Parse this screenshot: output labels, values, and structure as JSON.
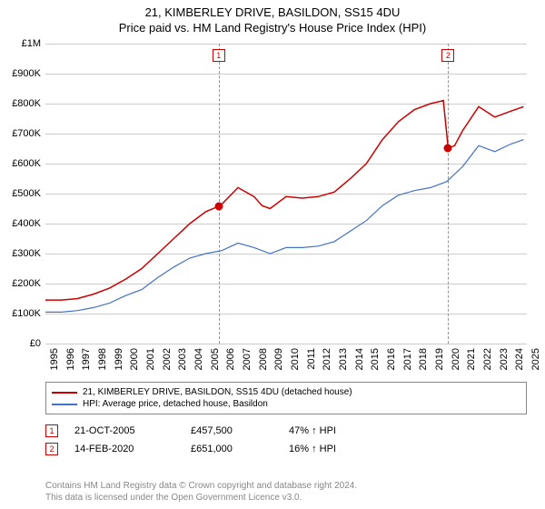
{
  "title": "21, KIMBERLEY DRIVE, BASILDON, SS15 4DU",
  "subtitle": "Price paid vs. HM Land Registry's House Price Index (HPI)",
  "chart": {
    "type": "line",
    "background_color": "#ffffff",
    "grid_color": "#cccccc",
    "marker_line_color": "#ff6666",
    "ylim": [
      0,
      1000000
    ],
    "ytick_step": 100000,
    "yticks": [
      "£0",
      "£100K",
      "£200K",
      "£300K",
      "£400K",
      "£500K",
      "£600K",
      "£700K",
      "£800K",
      "£900K",
      "£1M"
    ],
    "xmin": 1995,
    "xmax": 2025,
    "xticks": [
      1995,
      1996,
      1997,
      1998,
      1999,
      2000,
      2001,
      2002,
      2003,
      2004,
      2005,
      2006,
      2007,
      2008,
      2009,
      2010,
      2011,
      2012,
      2013,
      2014,
      2015,
      2016,
      2017,
      2018,
      2019,
      2020,
      2021,
      2022,
      2023,
      2024,
      2025
    ],
    "marker_years": [
      2005.8,
      2020.1
    ],
    "series": [
      {
        "name": "21, KIMBERLEY DRIVE, BASILDON, SS15 4DU (detached house)",
        "color": "#cc0000",
        "line_width": 1.5,
        "dot_color": "#cc0000",
        "points": [
          [
            1995,
            145000
          ],
          [
            1996,
            145000
          ],
          [
            1997,
            150000
          ],
          [
            1998,
            165000
          ],
          [
            1999,
            185000
          ],
          [
            2000,
            215000
          ],
          [
            2001,
            250000
          ],
          [
            2002,
            300000
          ],
          [
            2003,
            350000
          ],
          [
            2004,
            400000
          ],
          [
            2005,
            440000
          ],
          [
            2005.8,
            457500
          ],
          [
            2006,
            465000
          ],
          [
            2007,
            520000
          ],
          [
            2008,
            490000
          ],
          [
            2008.5,
            460000
          ],
          [
            2009,
            450000
          ],
          [
            2010,
            490000
          ],
          [
            2011,
            485000
          ],
          [
            2012,
            490000
          ],
          [
            2013,
            505000
          ],
          [
            2014,
            550000
          ],
          [
            2015,
            600000
          ],
          [
            2016,
            680000
          ],
          [
            2017,
            740000
          ],
          [
            2018,
            780000
          ],
          [
            2019,
            800000
          ],
          [
            2019.8,
            810000
          ],
          [
            2020.1,
            651000
          ],
          [
            2020.5,
            660000
          ],
          [
            2021,
            710000
          ],
          [
            2022,
            790000
          ],
          [
            2023,
            755000
          ],
          [
            2024,
            775000
          ],
          [
            2024.8,
            790000
          ]
        ],
        "dots": [
          [
            2005.8,
            457500
          ],
          [
            2020.1,
            651000
          ]
        ]
      },
      {
        "name": "HPI: Average price, detached house, Basildon",
        "color": "#4472c4",
        "line_width": 1.2,
        "points": [
          [
            1995,
            105000
          ],
          [
            1996,
            105000
          ],
          [
            1997,
            110000
          ],
          [
            1998,
            120000
          ],
          [
            1999,
            135000
          ],
          [
            2000,
            160000
          ],
          [
            2001,
            180000
          ],
          [
            2002,
            220000
          ],
          [
            2003,
            255000
          ],
          [
            2004,
            285000
          ],
          [
            2005,
            300000
          ],
          [
            2006,
            310000
          ],
          [
            2007,
            335000
          ],
          [
            2008,
            320000
          ],
          [
            2009,
            300000
          ],
          [
            2010,
            320000
          ],
          [
            2011,
            320000
          ],
          [
            2012,
            325000
          ],
          [
            2013,
            340000
          ],
          [
            2014,
            375000
          ],
          [
            2015,
            410000
          ],
          [
            2016,
            460000
          ],
          [
            2017,
            495000
          ],
          [
            2018,
            510000
          ],
          [
            2019,
            520000
          ],
          [
            2020,
            540000
          ],
          [
            2021,
            590000
          ],
          [
            2022,
            660000
          ],
          [
            2023,
            640000
          ],
          [
            2024,
            665000
          ],
          [
            2024.8,
            680000
          ]
        ]
      }
    ],
    "annotations": [
      {
        "n": "1",
        "date": "21-OCT-2005",
        "price": "£457,500",
        "pct": "47% ↑ HPI"
      },
      {
        "n": "2",
        "date": "14-FEB-2020",
        "price": "£651,000",
        "pct": "16% ↑ HPI"
      }
    ]
  },
  "legend": {
    "items": [
      {
        "color": "#cc0000",
        "label": "21, KIMBERLEY DRIVE, BASILDON, SS15 4DU (detached house)"
      },
      {
        "color": "#4472c4",
        "label": "HPI: Average price, detached house, Basildon"
      }
    ]
  },
  "footer": {
    "line1": "Contains HM Land Registry data © Crown copyright and database right 2024.",
    "line2": "This data is licensed under the Open Government Licence v3.0."
  }
}
